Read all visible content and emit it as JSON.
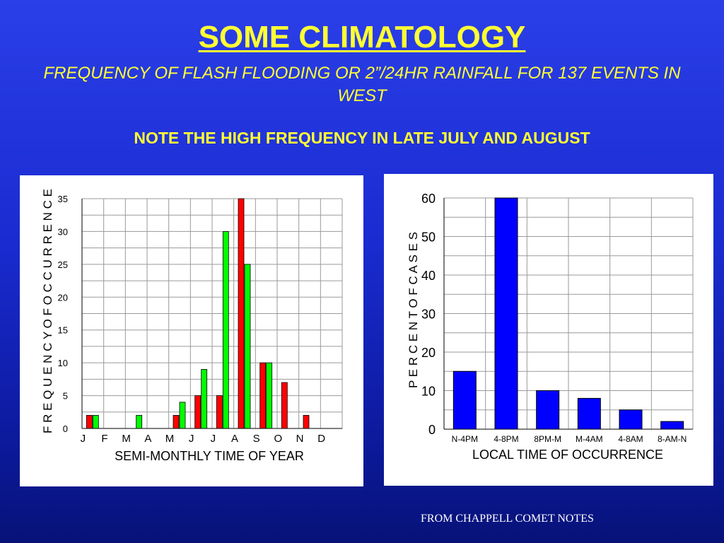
{
  "title": "SOME CLIMATOLOGY",
  "subtitle": "FREQUENCY OF FLASH FLOODING OR 2”/24HR RAINFALL FOR 137 EVENTS IN WEST",
  "note": "NOTE THE HIGH FREQUENCY IN LATE JULY AND AUGUST",
  "source": "FROM CHAPPELL COMET NOTES",
  "chart_data": [
    {
      "type": "bar",
      "xlabel": "SEMI-MONTHLY TIME OF YEAR",
      "ylabel": "F R E Q U E N C Y   O F   O C C U R R E N C E",
      "categories": [
        "J",
        "F",
        "M",
        "A",
        "M",
        "J",
        "J",
        "A",
        "S",
        "O",
        "N",
        "D"
      ],
      "series": [
        {
          "color": "#ff0000",
          "values": [
            2,
            0,
            0,
            0,
            2,
            5,
            5,
            35,
            10,
            7,
            2,
            0
          ]
        },
        {
          "color": "#00ff00",
          "values": [
            2,
            0,
            2,
            0,
            4,
            9,
            30,
            25,
            10,
            0,
            0,
            0
          ]
        }
      ],
      "ylim": [
        0,
        35
      ],
      "yticks": [
        0,
        5,
        10,
        15,
        20,
        25,
        30,
        35
      ],
      "grid": true,
      "legend": "none"
    },
    {
      "type": "bar",
      "xlabel": "LOCAL TIME OF OCCURRENCE",
      "ylabel": "P E R C E N T   O F   C A S E S",
      "categories": [
        "N-4PM",
        "4-8PM",
        "8PM-M",
        "M-4AM",
        "4-8AM",
        "8-AM-N"
      ],
      "values": [
        15,
        60,
        10,
        8,
        5,
        2
      ],
      "color": "#0000ff",
      "ylim": [
        0,
        60
      ],
      "yticks": [
        0,
        10,
        20,
        30,
        40,
        50,
        60
      ],
      "grid": true,
      "legend": "none"
    }
  ]
}
